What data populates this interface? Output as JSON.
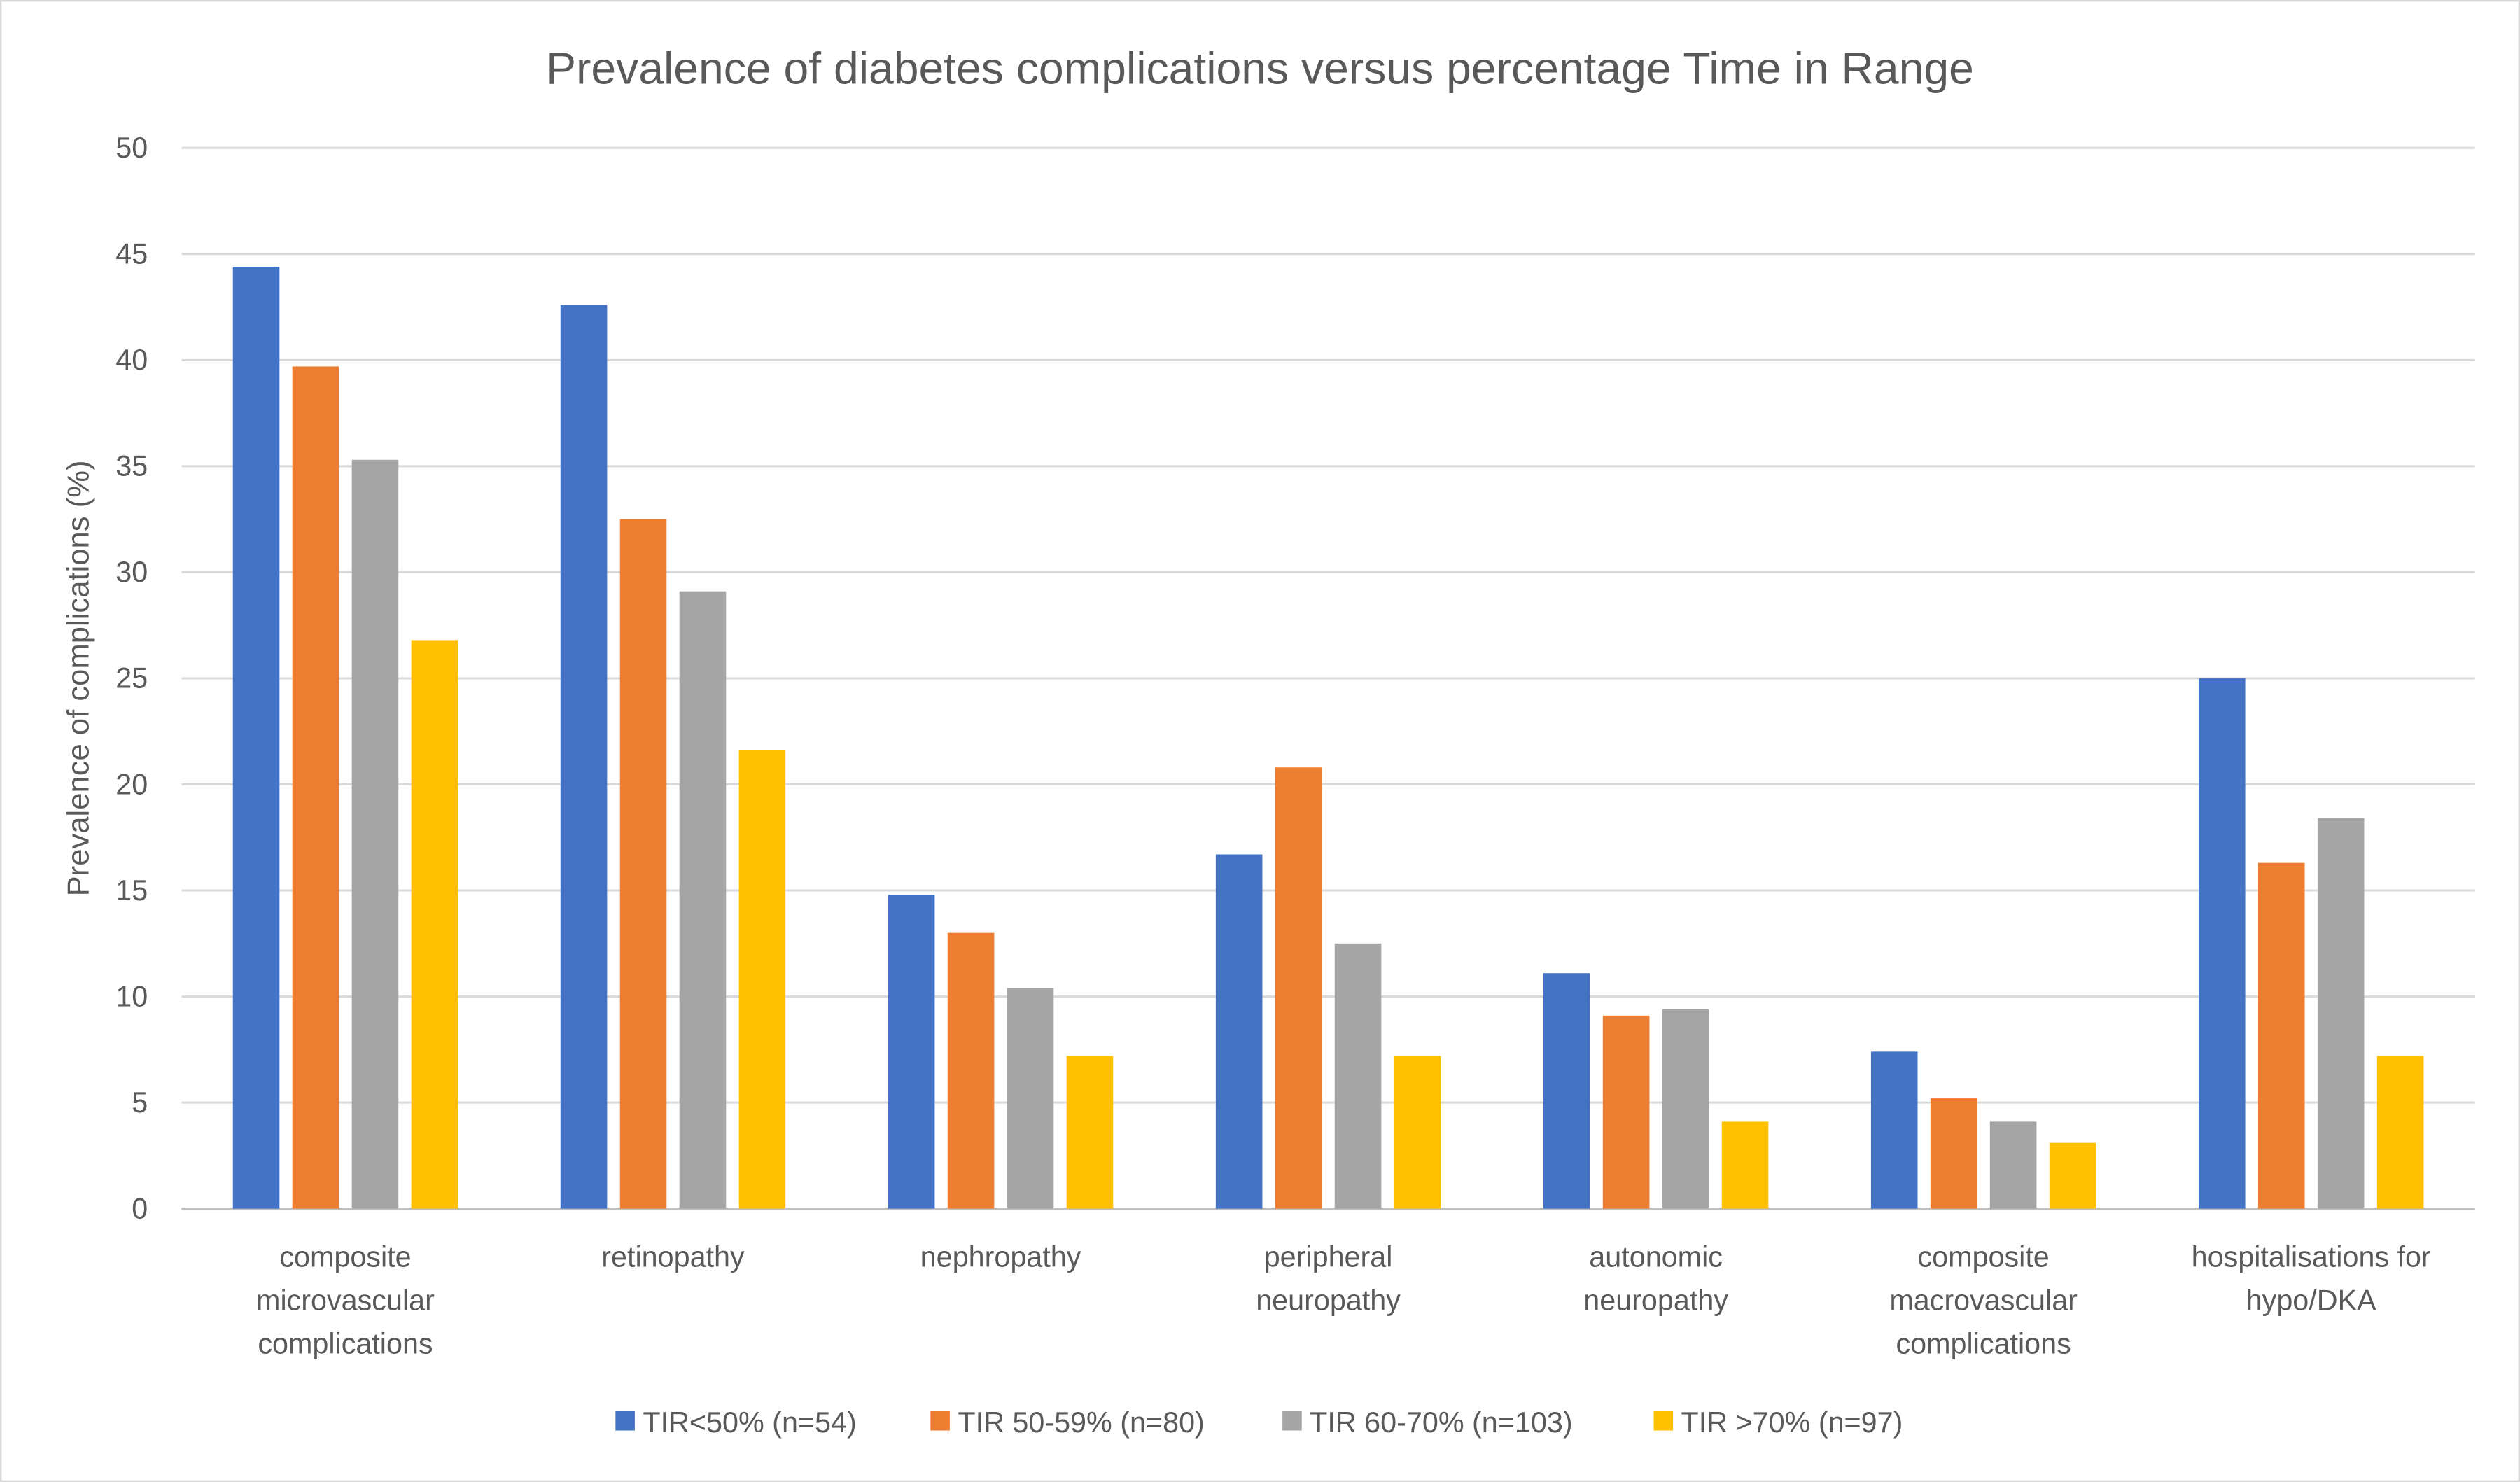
{
  "chart_data": {
    "type": "bar",
    "title": "Prevalence of diabetes complications versus percentage Time in Range",
    "xlabel": "",
    "ylabel": "Prevalence of complications (%)",
    "ylim": [
      0,
      50
    ],
    "yticks": [
      0,
      5,
      10,
      15,
      20,
      25,
      30,
      35,
      40,
      45,
      50
    ],
    "grid": true,
    "legend_position": "bottom",
    "categories": [
      [
        "composite",
        "microvascular",
        "complications"
      ],
      [
        "retinopathy"
      ],
      [
        "nephropathy"
      ],
      [
        "peripheral",
        "neuropathy"
      ],
      [
        "autonomic",
        "neuropathy"
      ],
      [
        "composite",
        "macrovascular",
        "complications"
      ],
      [
        "hospitalisations for",
        "hypo/DKA"
      ]
    ],
    "series": [
      {
        "name": "TIR<50% (n=54)",
        "color": "#4472C4",
        "values": [
          44.4,
          42.6,
          14.8,
          16.7,
          11.1,
          7.4,
          25.0
        ]
      },
      {
        "name": "TIR 50-59% (n=80)",
        "color": "#ED7D31",
        "values": [
          39.7,
          32.5,
          13.0,
          20.8,
          9.1,
          5.2,
          16.3
        ]
      },
      {
        "name": "TIR 60-70% (n=103)",
        "color": "#A5A5A5",
        "values": [
          35.3,
          29.1,
          10.4,
          12.5,
          9.4,
          4.1,
          18.4
        ]
      },
      {
        "name": "TIR >70% (n=97)",
        "color": "#FFC000",
        "values": [
          26.8,
          21.6,
          7.2,
          7.2,
          4.1,
          3.1,
          7.2
        ]
      }
    ]
  }
}
